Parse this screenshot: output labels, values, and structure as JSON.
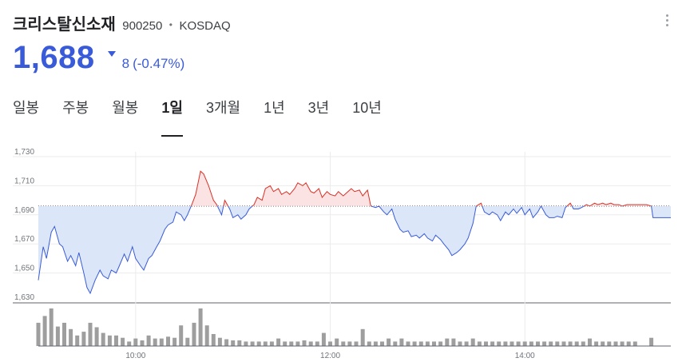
{
  "header": {
    "name": "크리스탈신소재",
    "code": "900250",
    "separator": "•",
    "market": "KOSDAQ",
    "more_icon": "more-vert-icon"
  },
  "quote": {
    "price": "1,688",
    "direction_icon": "triangle-down-icon",
    "change": "8",
    "change_pct": "(-0.47%)",
    "color_down": "#3a5bd9",
    "color_up": "#d93025"
  },
  "tabs": [
    {
      "label": "일봉",
      "active": false
    },
    {
      "label": "주봉",
      "active": false
    },
    {
      "label": "월봉",
      "active": false
    },
    {
      "label": "1일",
      "active": true
    },
    {
      "label": "3개월",
      "active": false
    },
    {
      "label": "1년",
      "active": false
    },
    {
      "label": "3년",
      "active": false
    },
    {
      "label": "10년",
      "active": false
    }
  ],
  "chart_data": {
    "type": "area",
    "baseline": 1696,
    "ylim": [
      1630,
      1730
    ],
    "y_ticks": [
      "1,730",
      "1,710",
      "1,690",
      "1,670",
      "1,650",
      "1,630"
    ],
    "y_tick_values": [
      1730,
      1710,
      1690,
      1670,
      1650,
      1630
    ],
    "xlim": [
      "09:00",
      "15:30"
    ],
    "x_ticks": [
      "10:00",
      "12:00",
      "14:00"
    ],
    "x_tick_values": [
      "10:00",
      "12:00",
      "14:00"
    ],
    "grid": true,
    "colors": {
      "below": "#3a5bd9",
      "below_fill": "#dbe7f8",
      "above": "#d93025",
      "above_fill": "#fbe3e3",
      "volume": "#9e9e9e"
    },
    "price_series": [
      [
        "09:00",
        1645
      ],
      [
        "09:03",
        1668
      ],
      [
        "09:05",
        1660
      ],
      [
        "09:08",
        1678
      ],
      [
        "09:10",
        1682
      ],
      [
        "09:13",
        1670
      ],
      [
        "09:15",
        1668
      ],
      [
        "09:18",
        1658
      ],
      [
        "09:20",
        1662
      ],
      [
        "09:23",
        1655
      ],
      [
        "09:25",
        1664
      ],
      [
        "09:28",
        1650
      ],
      [
        "09:30",
        1640
      ],
      [
        "09:32",
        1636
      ],
      [
        "09:35",
        1645
      ],
      [
        "09:38",
        1652
      ],
      [
        "09:40",
        1648
      ],
      [
        "09:43",
        1646
      ],
      [
        "09:45",
        1652
      ],
      [
        "09:48",
        1650
      ],
      [
        "09:50",
        1655
      ],
      [
        "09:53",
        1663
      ],
      [
        "09:55",
        1658
      ],
      [
        "09:58",
        1668
      ],
      [
        "10:00",
        1660
      ],
      [
        "10:03",
        1655
      ],
      [
        "10:05",
        1652
      ],
      [
        "10:08",
        1660
      ],
      [
        "10:10",
        1662
      ],
      [
        "10:13",
        1668
      ],
      [
        "10:15",
        1672
      ],
      [
        "10:18",
        1680
      ],
      [
        "10:20",
        1683
      ],
      [
        "10:23",
        1685
      ],
      [
        "10:25",
        1692
      ],
      [
        "10:28",
        1690
      ],
      [
        "10:30",
        1686
      ],
      [
        "10:32",
        1690
      ],
      [
        "10:35",
        1698
      ],
      [
        "10:37",
        1704
      ],
      [
        "10:40",
        1720
      ],
      [
        "10:42",
        1718
      ],
      [
        "10:45",
        1710
      ],
      [
        "10:48",
        1700
      ],
      [
        "10:50",
        1697
      ],
      [
        "10:53",
        1690
      ],
      [
        "10:55",
        1700
      ],
      [
        "10:58",
        1694
      ],
      [
        "11:00",
        1688
      ],
      [
        "11:03",
        1690
      ],
      [
        "11:05",
        1687
      ],
      [
        "11:08",
        1690
      ],
      [
        "11:10",
        1694
      ],
      [
        "11:13",
        1697
      ],
      [
        "11:15",
        1702
      ],
      [
        "11:18",
        1700
      ],
      [
        "11:20",
        1708
      ],
      [
        "11:23",
        1710
      ],
      [
        "11:25",
        1706
      ],
      [
        "11:28",
        1708
      ],
      [
        "11:30",
        1704
      ],
      [
        "11:33",
        1706
      ],
      [
        "11:35",
        1704
      ],
      [
        "11:38",
        1708
      ],
      [
        "11:40",
        1712
      ],
      [
        "11:43",
        1710
      ],
      [
        "11:45",
        1712
      ],
      [
        "11:48",
        1706
      ],
      [
        "11:50",
        1705
      ],
      [
        "11:53",
        1708
      ],
      [
        "11:55",
        1702
      ],
      [
        "11:58",
        1706
      ],
      [
        "12:00",
        1704
      ],
      [
        "12:03",
        1703
      ],
      [
        "12:05",
        1706
      ],
      [
        "12:08",
        1703
      ],
      [
        "12:10",
        1705
      ],
      [
        "12:13",
        1708
      ],
      [
        "12:15",
        1706
      ],
      [
        "12:18",
        1707
      ],
      [
        "12:20",
        1703
      ],
      [
        "12:23",
        1707
      ],
      [
        "12:25",
        1696
      ],
      [
        "12:28",
        1695
      ],
      [
        "12:30",
        1696
      ],
      [
        "12:33",
        1692
      ],
      [
        "12:35",
        1690
      ],
      [
        "12:38",
        1694
      ],
      [
        "12:40",
        1687
      ],
      [
        "12:43",
        1680
      ],
      [
        "12:45",
        1678
      ],
      [
        "12:48",
        1679
      ],
      [
        "12:50",
        1675
      ],
      [
        "12:53",
        1676
      ],
      [
        "12:55",
        1674
      ],
      [
        "12:58",
        1677
      ],
      [
        "13:00",
        1674
      ],
      [
        "13:03",
        1672
      ],
      [
        "13:05",
        1676
      ],
      [
        "13:08",
        1673
      ],
      [
        "13:10",
        1670
      ],
      [
        "13:13",
        1666
      ],
      [
        "13:15",
        1662
      ],
      [
        "13:18",
        1664
      ],
      [
        "13:20",
        1666
      ],
      [
        "13:23",
        1670
      ],
      [
        "13:25",
        1674
      ],
      [
        "13:28",
        1684
      ],
      [
        "13:30",
        1696
      ],
      [
        "13:33",
        1698
      ],
      [
        "13:35",
        1692
      ],
      [
        "13:38",
        1690
      ],
      [
        "13:40",
        1692
      ],
      [
        "13:43",
        1690
      ],
      [
        "13:45",
        1686
      ],
      [
        "13:48",
        1692
      ],
      [
        "13:50",
        1690
      ],
      [
        "13:53",
        1694
      ],
      [
        "13:55",
        1691
      ],
      [
        "13:58",
        1695
      ],
      [
        "14:00",
        1690
      ],
      [
        "14:03",
        1694
      ],
      [
        "14:05",
        1688
      ],
      [
        "14:08",
        1692
      ],
      [
        "14:10",
        1696
      ],
      [
        "14:13",
        1690
      ],
      [
        "14:15",
        1688
      ],
      [
        "14:18",
        1688
      ],
      [
        "14:20",
        1689
      ],
      [
        "14:23",
        1688
      ],
      [
        "14:25",
        1695
      ],
      [
        "14:28",
        1698
      ],
      [
        "14:30",
        1694
      ],
      [
        "14:33",
        1694
      ],
      [
        "14:35",
        1695
      ],
      [
        "14:38",
        1697
      ],
      [
        "14:40",
        1696
      ],
      [
        "14:43",
        1698
      ],
      [
        "14:45",
        1697
      ],
      [
        "14:48",
        1698
      ],
      [
        "14:50",
        1697
      ],
      [
        "14:53",
        1698
      ],
      [
        "14:55",
        1697
      ],
      [
        "14:58",
        1697
      ],
      [
        "15:00",
        1696
      ],
      [
        "15:03",
        1697
      ],
      [
        "15:05",
        1697
      ],
      [
        "15:08",
        1697
      ],
      [
        "15:10",
        1697
      ],
      [
        "15:13",
        1697
      ],
      [
        "15:15",
        1697
      ],
      [
        "15:18",
        1696
      ],
      [
        "15:19",
        1688
      ],
      [
        "15:30",
        1688
      ]
    ],
    "volume_series": [
      [
        "09:00",
        0.62
      ],
      [
        "09:04",
        0.8
      ],
      [
        "09:08",
        1.0
      ],
      [
        "09:12",
        0.52
      ],
      [
        "09:16",
        0.62
      ],
      [
        "09:20",
        0.45
      ],
      [
        "09:24",
        0.28
      ],
      [
        "09:28",
        0.38
      ],
      [
        "09:32",
        0.62
      ],
      [
        "09:36",
        0.5
      ],
      [
        "09:40",
        0.35
      ],
      [
        "09:44",
        0.28
      ],
      [
        "09:48",
        0.28
      ],
      [
        "09:52",
        0.22
      ],
      [
        "09:56",
        0.12
      ],
      [
        "10:00",
        0.2
      ],
      [
        "10:04",
        0.15
      ],
      [
        "10:08",
        0.28
      ],
      [
        "10:12",
        0.2
      ],
      [
        "10:16",
        0.2
      ],
      [
        "10:20",
        0.25
      ],
      [
        "10:24",
        0.22
      ],
      [
        "10:28",
        0.55
      ],
      [
        "10:32",
        0.22
      ],
      [
        "10:36",
        0.62
      ],
      [
        "10:40",
        1.0
      ],
      [
        "10:44",
        0.55
      ],
      [
        "10:48",
        0.32
      ],
      [
        "10:52",
        0.22
      ],
      [
        "10:56",
        0.18
      ],
      [
        "11:00",
        0.15
      ],
      [
        "11:04",
        0.15
      ],
      [
        "11:08",
        0.12
      ],
      [
        "11:12",
        0.12
      ],
      [
        "11:16",
        0.12
      ],
      [
        "11:20",
        0.12
      ],
      [
        "11:24",
        0.12
      ],
      [
        "11:28",
        0.2
      ],
      [
        "11:32",
        0.12
      ],
      [
        "11:36",
        0.12
      ],
      [
        "11:40",
        0.12
      ],
      [
        "11:44",
        0.15
      ],
      [
        "11:48",
        0.12
      ],
      [
        "11:52",
        0.12
      ],
      [
        "11:56",
        0.35
      ],
      [
        "12:00",
        0.12
      ],
      [
        "12:04",
        0.2
      ],
      [
        "12:08",
        0.12
      ],
      [
        "12:12",
        0.12
      ],
      [
        "12:16",
        0.12
      ],
      [
        "12:20",
        0.45
      ],
      [
        "12:24",
        0.12
      ],
      [
        "12:28",
        0.12
      ],
      [
        "12:32",
        0.12
      ],
      [
        "12:36",
        0.2
      ],
      [
        "12:40",
        0.12
      ],
      [
        "12:44",
        0.2
      ],
      [
        "12:48",
        0.12
      ],
      [
        "12:52",
        0.12
      ],
      [
        "12:56",
        0.12
      ],
      [
        "13:00",
        0.12
      ],
      [
        "13:04",
        0.12
      ],
      [
        "13:08",
        0.12
      ],
      [
        "13:12",
        0.2
      ],
      [
        "13:16",
        0.2
      ],
      [
        "13:20",
        0.12
      ],
      [
        "13:24",
        0.12
      ],
      [
        "13:28",
        0.2
      ],
      [
        "13:32",
        0.12
      ],
      [
        "13:36",
        0.12
      ],
      [
        "13:40",
        0.12
      ],
      [
        "13:44",
        0.12
      ],
      [
        "13:48",
        0.12
      ],
      [
        "13:52",
        0.12
      ],
      [
        "13:56",
        0.12
      ],
      [
        "14:00",
        0.12
      ],
      [
        "14:04",
        0.12
      ],
      [
        "14:08",
        0.12
      ],
      [
        "14:12",
        0.12
      ],
      [
        "14:16",
        0.12
      ],
      [
        "14:20",
        0.12
      ],
      [
        "14:24",
        0.12
      ],
      [
        "14:28",
        0.12
      ],
      [
        "14:32",
        0.12
      ],
      [
        "14:36",
        0.12
      ],
      [
        "14:40",
        0.2
      ],
      [
        "14:44",
        0.12
      ],
      [
        "14:48",
        0.12
      ],
      [
        "14:52",
        0.12
      ],
      [
        "14:56",
        0.12
      ],
      [
        "15:00",
        0.12
      ],
      [
        "15:04",
        0.12
      ],
      [
        "15:08",
        0.12
      ],
      [
        "15:18",
        0.22
      ]
    ]
  }
}
